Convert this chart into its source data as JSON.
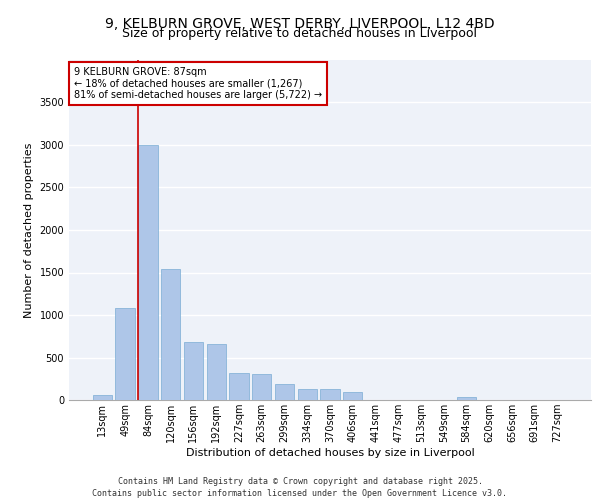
{
  "title_line1": "9, KELBURN GROVE, WEST DERBY, LIVERPOOL, L12 4BD",
  "title_line2": "Size of property relative to detached houses in Liverpool",
  "xlabel": "Distribution of detached houses by size in Liverpool",
  "ylabel": "Number of detached properties",
  "categories": [
    "13sqm",
    "49sqm",
    "84sqm",
    "120sqm",
    "156sqm",
    "192sqm",
    "227sqm",
    "263sqm",
    "299sqm",
    "334sqm",
    "370sqm",
    "406sqm",
    "441sqm",
    "477sqm",
    "513sqm",
    "549sqm",
    "584sqm",
    "620sqm",
    "656sqm",
    "691sqm",
    "727sqm"
  ],
  "values": [
    60,
    1080,
    3000,
    1540,
    680,
    660,
    320,
    310,
    185,
    130,
    130,
    100,
    0,
    0,
    0,
    0,
    30,
    0,
    0,
    0,
    0
  ],
  "bar_color": "#aec6e8",
  "bar_edge_color": "#7aadd4",
  "vline_color": "#cc0000",
  "annotation_text": "9 KELBURN GROVE: 87sqm\n← 18% of detached houses are smaller (1,267)\n81% of semi-detached houses are larger (5,722) →",
  "annotation_box_color": "#ffffff",
  "annotation_box_edge": "#cc0000",
  "ylim": [
    0,
    4000
  ],
  "yticks": [
    0,
    500,
    1000,
    1500,
    2000,
    2500,
    3000,
    3500
  ],
  "background_color": "#eef2f9",
  "footer_line1": "Contains HM Land Registry data © Crown copyright and database right 2025.",
  "footer_line2": "Contains public sector information licensed under the Open Government Licence v3.0.",
  "title_fontsize": 10,
  "subtitle_fontsize": 9,
  "axis_label_fontsize": 8,
  "tick_fontsize": 7,
  "annotation_fontsize": 7,
  "footer_fontsize": 6
}
